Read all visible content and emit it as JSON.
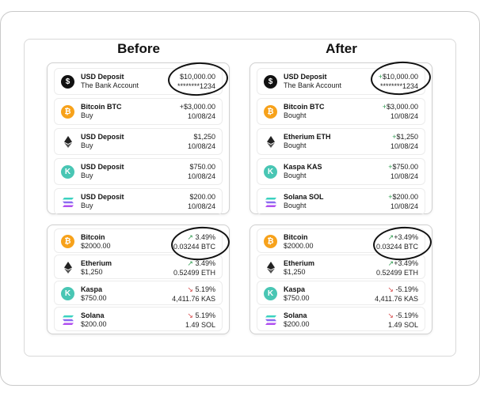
{
  "titles": {
    "before": "Before",
    "after": "After"
  },
  "before": {
    "transactions": [
      {
        "icon": "dollar-icon",
        "name": "USD Deposit",
        "sub": "The Bank Account",
        "value": "$10,000.00",
        "value2": "********1234"
      },
      {
        "icon": "bitcoin-icon",
        "name": "Bitcoin BTC",
        "sub": "Buy",
        "value": "+$3,000.00",
        "value2": "10/08/24"
      },
      {
        "icon": "ethereum-icon",
        "name": "USD Deposit",
        "sub": "Buy",
        "value": "$1,250",
        "value2": "10/08/24"
      },
      {
        "icon": "kaspa-icon",
        "name": "USD Deposit",
        "sub": "Buy",
        "value": "$750.00",
        "value2": "10/08/24"
      },
      {
        "icon": "solana-icon",
        "name": "USD Deposit",
        "sub": "Buy",
        "value": "$200.00",
        "value2": "10/08/24"
      }
    ],
    "holdings": [
      {
        "icon": "bitcoin-icon",
        "name": "Bitcoin",
        "sub": "$2000.00",
        "change": "3.49%",
        "dir": "up",
        "amount": "0.03244 BTC"
      },
      {
        "icon": "ethereum-icon",
        "name": "Etherium",
        "sub": "$1,250",
        "change": "3.49%",
        "dir": "up",
        "amount": "0.52499 ETH"
      },
      {
        "icon": "kaspa-icon",
        "name": "Kaspa",
        "sub": "$750.00",
        "change": "5.19%",
        "dir": "down",
        "amount": "4,411.76 KAS"
      },
      {
        "icon": "solana-icon",
        "name": "Solana",
        "sub": "$200.00",
        "change": "5.19%",
        "dir": "down",
        "amount": "1.49 SOL"
      }
    ]
  },
  "after": {
    "transactions": [
      {
        "icon": "dollar-icon",
        "name": "USD Deposit",
        "sub": "The Bank Account",
        "sign": "+",
        "value": "$10,000.00",
        "value2": "********1234"
      },
      {
        "icon": "bitcoin-icon",
        "name": "Bitcoin BTC",
        "sub": "Bought",
        "sign": "+",
        "value": "$3,000.00",
        "value2": "10/08/24"
      },
      {
        "icon": "ethereum-icon",
        "name": "Etherium ETH",
        "sub": "Bought",
        "sign": "+",
        "value": "$1,250",
        "value2": "10/08/24"
      },
      {
        "icon": "kaspa-icon",
        "name": "Kaspa KAS",
        "sub": "Bought",
        "sign": "+",
        "value": "$750.00",
        "value2": "10/08/24"
      },
      {
        "icon": "solana-icon",
        "name": "Solana SOL",
        "sub": "Bought",
        "sign": "+",
        "value": "$200.00",
        "value2": "10/08/24"
      }
    ],
    "holdings": [
      {
        "icon": "bitcoin-icon",
        "name": "Bitcoin",
        "sub": "$2000.00",
        "change": "+3.49%",
        "dir": "up",
        "amount": "0.03244 BTC"
      },
      {
        "icon": "ethereum-icon",
        "name": "Etherium",
        "sub": "$1,250",
        "change": "+3.49%",
        "dir": "up",
        "amount": "0.52499 ETH"
      },
      {
        "icon": "kaspa-icon",
        "name": "Kaspa",
        "sub": "$750.00",
        "change": "-5.19%",
        "dir": "down",
        "amount": "4,411.76 KAS"
      },
      {
        "icon": "solana-icon",
        "name": "Solana",
        "sub": "$200.00",
        "change": "-5.19%",
        "dir": "down",
        "amount": "1.49 SOL"
      }
    ]
  },
  "colors": {
    "positive": "#2e9b4e",
    "negative": "#d64545",
    "bitcoin": "#f7a21b",
    "kaspa": "#49c6b4"
  }
}
